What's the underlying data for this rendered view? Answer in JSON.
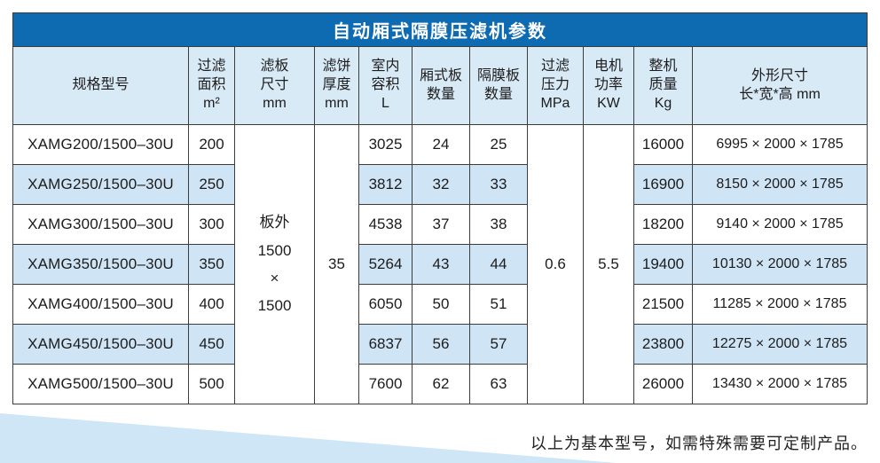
{
  "title": "自动厢式隔膜压滤机参数",
  "note": "以上为基本型号，如需特殊需要可定制产品。",
  "colors": {
    "title_bar": "#0e6bb2",
    "header_bg": "#d9eaf7",
    "row_alt": "#cfe4f5",
    "border": "#3c3c3c",
    "triangle": "#cfe6f7"
  },
  "table": {
    "headers": [
      "规格型号",
      "过滤\n面积\nm²",
      "滤板\n尺寸\nmm",
      "滤饼\n厚度\nmm",
      "室内\n容积\nL",
      "厢式板\n数量",
      "隔膜板\n数量",
      "过滤\n压力\nMPa",
      "电机\n功率\nKW",
      "整机\n质量\nKg",
      "外形尺寸\n长*宽*高 mm"
    ],
    "merged": {
      "plate_size": "板外\n1500\n×\n1500",
      "cake_thickness": "35",
      "filter_pressure": "0.6",
      "motor_power": "5.5"
    },
    "rows": [
      {
        "model": "XAMG200/1500–30U",
        "area": "200",
        "volume": "3025",
        "chamber_plates": "24",
        "diaphragm_plates": "25",
        "weight": "16000",
        "dimensions": "6995 × 2000 × 1785"
      },
      {
        "model": "XAMG250/1500–30U",
        "area": "250",
        "volume": "3812",
        "chamber_plates": "32",
        "diaphragm_plates": "33",
        "weight": "16900",
        "dimensions": "8150 × 2000 × 1785"
      },
      {
        "model": "XAMG300/1500–30U",
        "area": "300",
        "volume": "4538",
        "chamber_plates": "37",
        "diaphragm_plates": "38",
        "weight": "18200",
        "dimensions": "9140 × 2000 × 1785"
      },
      {
        "model": "XAMG350/1500–30U",
        "area": "350",
        "volume": "5264",
        "chamber_plates": "43",
        "diaphragm_plates": "44",
        "weight": "19400",
        "dimensions": "10130 × 2000 × 1785"
      },
      {
        "model": "XAMG400/1500–30U",
        "area": "400",
        "volume": "6050",
        "chamber_plates": "50",
        "diaphragm_plates": "51",
        "weight": "21500",
        "dimensions": "11285 × 2000 × 1785"
      },
      {
        "model": "XAMG450/1500–30U",
        "area": "450",
        "volume": "6837",
        "chamber_plates": "56",
        "diaphragm_plates": "57",
        "weight": "23800",
        "dimensions": "12275 × 2000 × 1785"
      },
      {
        "model": "XAMG500/1500–30U",
        "area": "500",
        "volume": "7600",
        "chamber_plates": "62",
        "diaphragm_plates": "63",
        "weight": "26000",
        "dimensions": "13430 × 2000 × 1785"
      }
    ]
  }
}
